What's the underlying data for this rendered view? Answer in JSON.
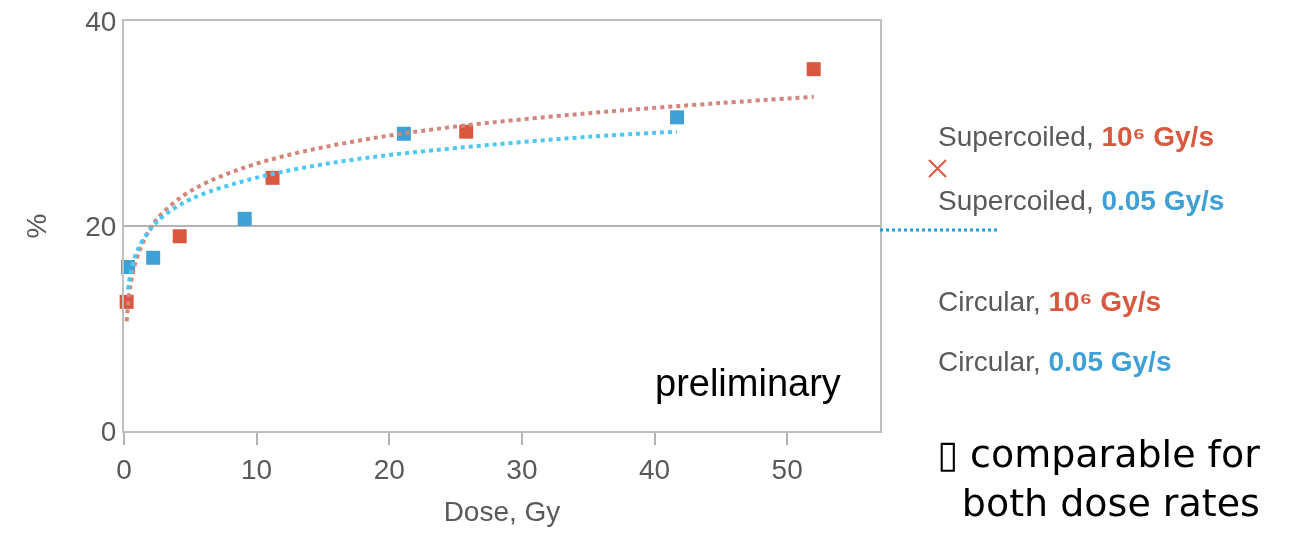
{
  "chart_data": {
    "type": "scatter",
    "xlabel": "Dose, Gy",
    "ylabel": "%",
    "xlim": [
      0,
      57
    ],
    "xticks": [
      0,
      10,
      20,
      30,
      40,
      50
    ],
    "ylim": [
      0,
      40
    ],
    "yticks": [
      0,
      20,
      40
    ],
    "grid": "y",
    "series": [
      {
        "color": "#d9583f",
        "marker": "square",
        "x": [
          0.2,
          4.2,
          11.2,
          25.8,
          52.0
        ],
        "values": [
          12.6,
          19.0,
          24.7,
          29.2,
          35.3
        ]
      },
      {
        "color": "#3fa0d6",
        "marker": "square",
        "x": [
          0.3,
          2.2,
          9.1,
          21.1,
          41.7
        ],
        "values": [
          16.0,
          16.9,
          20.7,
          29.0,
          30.6
        ]
      },
      {
        "type": "line",
        "marker": "none",
        "line_style": "dotted",
        "color": "#d4867a",
        "x": [
          0.2,
          0.5,
          1,
          2,
          3,
          5,
          8,
          12,
          18,
          25,
          35,
          45,
          52
        ],
        "values": [
          10.7,
          14.3,
          17.0,
          19.8,
          21.4,
          23.4,
          25.2,
          26.8,
          28.4,
          29.7,
          31.0,
          32.0,
          32.6
        ]
      },
      {
        "type": "line",
        "marker": "none",
        "line_style": "dotted",
        "color": "#4dc8f5",
        "x": [
          0.3,
          0.5,
          1,
          2,
          3,
          5,
          8,
          12,
          18,
          25,
          35,
          41.7
        ],
        "values": [
          13.8,
          15.4,
          17.6,
          19.7,
          21.0,
          22.6,
          24.0,
          25.3,
          26.6,
          27.6,
          28.7,
          29.2
        ]
      }
    ],
    "annotations": [
      "preliminary",
      "Supercoiled, 10⁶ Gy/s",
      "Supercoiled, 0.05 Gy/s",
      "Circular, 10⁶ Gy/s",
      "Circular, 0.05 Gy/s",
      "▯ comparable for\nboth dose rates"
    ]
  }
}
